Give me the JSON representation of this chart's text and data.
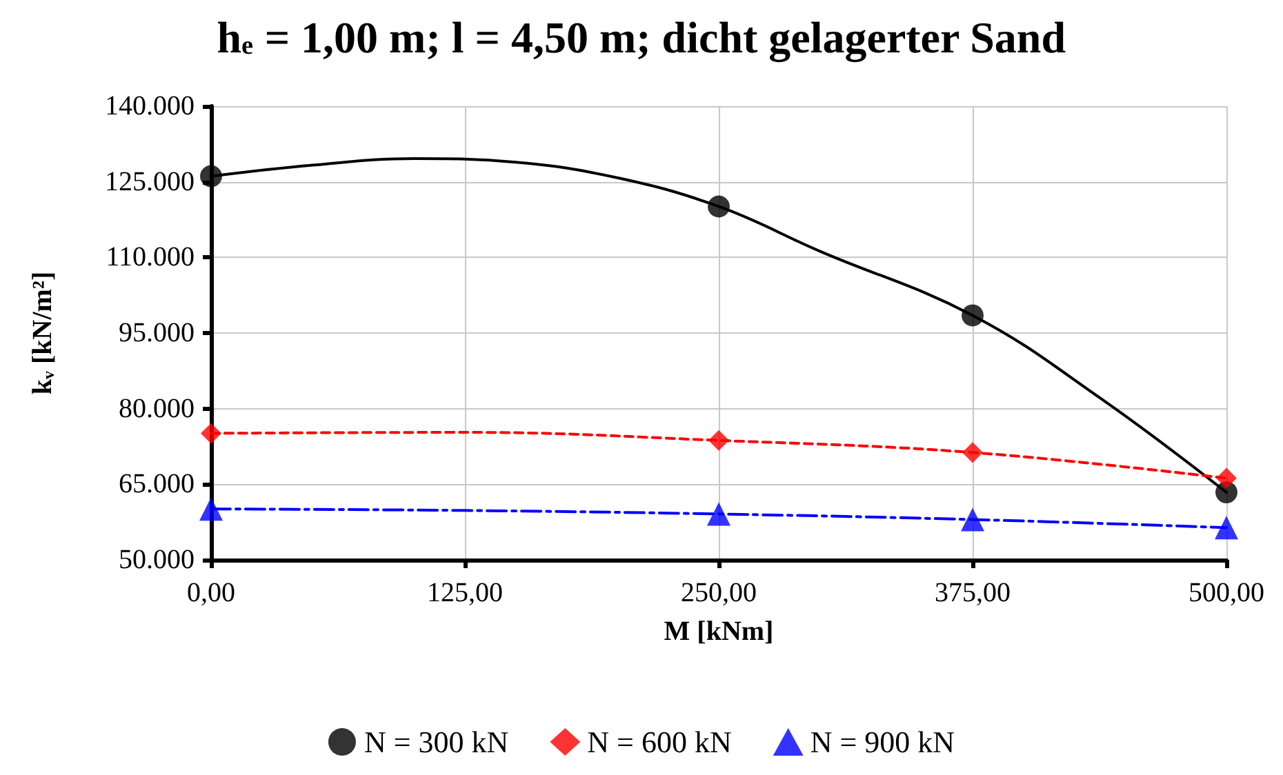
{
  "chart_data": {
    "type": "scatter",
    "title": "h$_{e}$ = 1,00 m; l = 4,50 m; dicht gelagerter Sand",
    "xlabel": "M [kNm]",
    "ylabel": "k$_{v}$ [kN/m²]",
    "x": [
      0,
      250,
      375,
      500
    ],
    "series": [
      {
        "name": "N = 300 kN",
        "color": "#000000",
        "marker": "circle",
        "values": [
          126100,
          120100,
          98500,
          63400
        ]
      },
      {
        "name": "N = 600 kN",
        "color": "#ff0000",
        "marker": "diamond",
        "values": [
          75100,
          73700,
          71300,
          66200
        ]
      },
      {
        "name": "N = 900 kN",
        "color": "#0000ff",
        "marker": "triangle",
        "values": [
          60100,
          59100,
          58000,
          56400
        ]
      },
      {
        "type": "line",
        "color": "#000000",
        "line_style": "solid",
        "x": [
          0,
          50,
          100,
          150,
          200,
          250,
          300,
          375,
          437.5,
          500
        ],
        "values": [
          126100,
          128300,
          129600,
          128900,
          125800,
          120100,
          111200,
          98500,
          82200,
          63400
        ]
      },
      {
        "type": "line",
        "color": "#ff0000",
        "line_style": "dashed",
        "x": [
          0,
          125,
          250,
          375,
          500
        ],
        "values": [
          75100,
          75300,
          73700,
          71300,
          66200
        ]
      },
      {
        "type": "line",
        "color": "#0000ff",
        "line_style": "dashdot",
        "x": [
          0,
          125,
          250,
          375,
          500
        ],
        "values": [
          60100,
          59800,
          59100,
          58000,
          56400
        ]
      }
    ],
    "xlim": [
      0,
      500
    ],
    "xticks": [
      {
        "value": 0,
        "label": "0,00"
      },
      {
        "value": 125,
        "label": "125,00"
      },
      {
        "value": 250,
        "label": "250,00"
      },
      {
        "value": 375,
        "label": "375,00"
      },
      {
        "value": 500,
        "label": "500,00"
      }
    ],
    "ylim": [
      50000,
      140000
    ],
    "yticks": [
      {
        "value": 50000,
        "label": "50.000"
      },
      {
        "value": 65000,
        "label": "65.000"
      },
      {
        "value": 80000,
        "label": "80.000"
      },
      {
        "value": 95000,
        "label": "95.000"
      },
      {
        "value": 110000,
        "label": "110.000"
      },
      {
        "value": 125000,
        "label": "125.000"
      },
      {
        "value": 140000,
        "label": "140.000"
      }
    ],
    "grid": true,
    "legend": "bottom"
  }
}
